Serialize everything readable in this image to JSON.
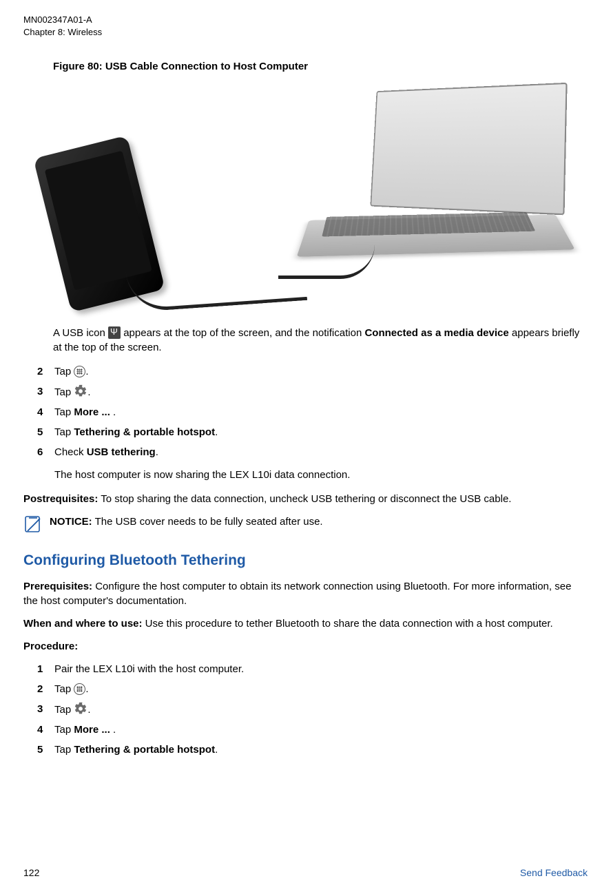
{
  "header": {
    "doc_id": "MN002347A01-A",
    "chapter": "Chapter 8:  Wireless"
  },
  "figure": {
    "caption": "Figure 80: USB Cable Connection to Host Computer"
  },
  "usb_note": {
    "pre": "A USB icon ",
    "mid": " appears at the top of the screen, and the notification ",
    "bold": "Connected as a media device",
    "post": " appears briefly at the top of the screen."
  },
  "steps_a": [
    {
      "num": "2",
      "pre": "Tap ",
      "icon": "apps",
      "post": "."
    },
    {
      "num": "3",
      "pre": "Tap ",
      "icon": "settings",
      "post": "."
    },
    {
      "num": "4",
      "pre": "Tap ",
      "bold": "More ...",
      "post": " ."
    },
    {
      "num": "5",
      "pre": "Tap ",
      "bold": "Tethering & portable hotspot",
      "post": "."
    },
    {
      "num": "6",
      "pre": "Check ",
      "bold": "USB tethering",
      "post": "."
    }
  ],
  "after_steps_a": "The host computer is now sharing the LEX L10i data connection.",
  "postreq": {
    "label": "Postrequisites:",
    "text": " To stop sharing the data connection, uncheck USB tethering or disconnect the USB cable."
  },
  "notice": {
    "label": "NOTICE:",
    "text": " The USB cover needs to be fully seated after use."
  },
  "section2": {
    "title": "Configuring Bluetooth Tethering",
    "title_color": "#1f5aa6",
    "prereq_label": "Prerequisites:",
    "prereq_text": " Configure the host computer to obtain its network connection using Bluetooth. For more information, see the host computer's documentation.",
    "when_label": "When and where to use:",
    "when_text": " Use this procedure to tether Bluetooth to share the data connection with a host computer.",
    "procedure_label": "Procedure:"
  },
  "steps_b": [
    {
      "num": "1",
      "text": "Pair the LEX L10i with the host computer."
    },
    {
      "num": "2",
      "pre": "Tap ",
      "icon": "apps",
      "post": "."
    },
    {
      "num": "3",
      "pre": "Tap ",
      "icon": "settings",
      "post": "."
    },
    {
      "num": "4",
      "pre": "Tap ",
      "bold": "More ...",
      "post": " ."
    },
    {
      "num": "5",
      "pre": "Tap ",
      "bold": "Tethering & portable hotspot",
      "post": "."
    }
  ],
  "footer": {
    "page": "122",
    "feedback": "Send Feedback",
    "feedback_color": "#1f5aa6"
  }
}
